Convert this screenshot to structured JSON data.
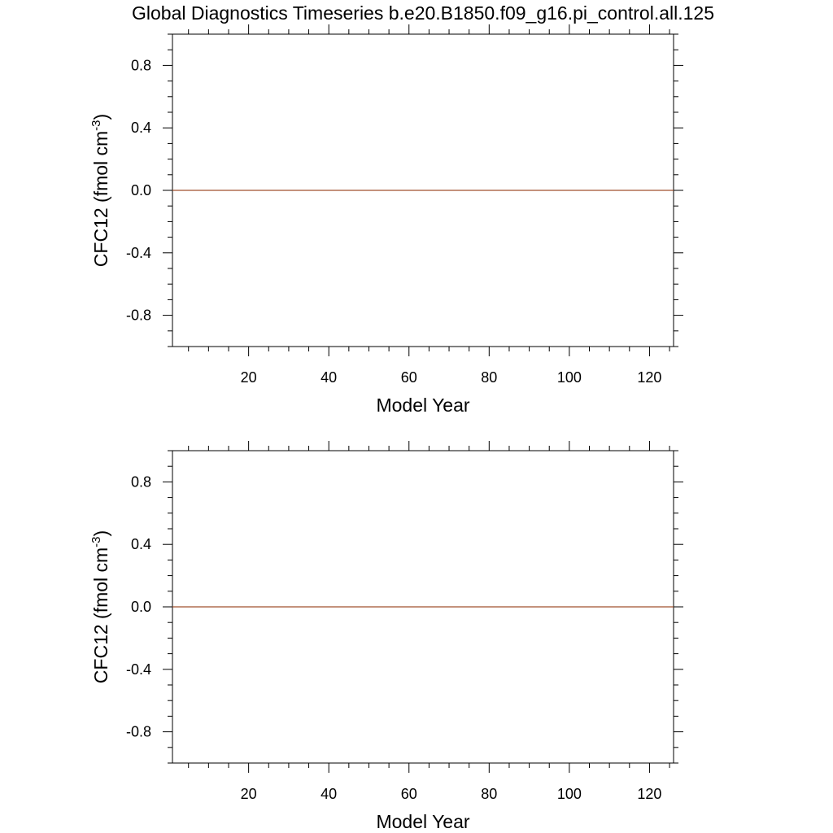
{
  "title": "Global Diagnostics Timeseries b.e20.B1850.f09_g16.pi_control.all.125",
  "colors": {
    "series_line": "#a0522d",
    "axes": "#000000",
    "background": "#ffffff"
  },
  "chart_data": [
    {
      "type": "line",
      "xlabel": "Model Year",
      "ylabel": {
        "prefix": "CFC12 (fmol cm",
        "superscript": "-3",
        "suffix": ")"
      },
      "xlim": [
        1,
        126
      ],
      "ylim": [
        -1,
        1
      ],
      "x_ticks": [
        "20",
        "40",
        "60",
        "80",
        "100",
        "120"
      ],
      "y_ticks": [
        "0.8",
        "0.4",
        "0.0",
        "-0.4",
        "-0.8"
      ],
      "grid": false,
      "series": [
        {
          "x": [
            1,
            126
          ],
          "y": [
            0,
            0
          ]
        }
      ]
    },
    {
      "type": "line",
      "xlabel": "Model Year",
      "ylabel": {
        "prefix": "CFC12 (fmol cm",
        "superscript": "-3",
        "suffix": ")"
      },
      "xlim": [
        1,
        126
      ],
      "ylim": [
        -1,
        1
      ],
      "x_ticks": [
        "20",
        "40",
        "60",
        "80",
        "100",
        "120"
      ],
      "y_ticks": [
        "0.8",
        "0.4",
        "0.0",
        "-0.4",
        "-0.8"
      ],
      "grid": false,
      "series": [
        {
          "x": [
            1,
            126
          ],
          "y": [
            0,
            0
          ]
        }
      ]
    }
  ]
}
